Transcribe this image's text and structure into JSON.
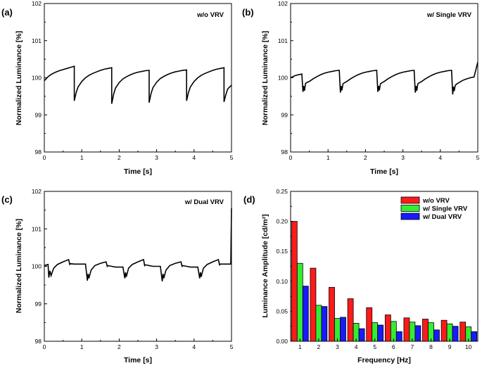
{
  "chart_data": [
    {
      "id": "a",
      "type": "line",
      "panel_label": "(a)",
      "annotation": "w/o VRV",
      "xlabel": "Time [s]",
      "ylabel": "Normalized Luminance [%]",
      "xlim": [
        0,
        5
      ],
      "ylim": [
        98,
        102
      ],
      "xticks": [
        "0",
        "1",
        "2",
        "3",
        "4",
        "5"
      ],
      "yticks": [
        "98",
        "99",
        "100",
        "101",
        "102"
      ],
      "series": [
        {
          "name": "w/o VRV",
          "x": [
            0,
            0.1,
            0.2,
            0.3,
            0.4,
            0.5,
            0.6,
            0.7,
            0.8,
            0.8,
            0.85,
            0.9,
            1.0,
            1.1,
            1.2,
            1.3,
            1.4,
            1.5,
            1.6,
            1.7,
            1.8,
            1.8,
            1.85,
            1.9,
            2.0,
            2.1,
            2.2,
            2.3,
            2.4,
            2.5,
            2.6,
            2.7,
            2.8,
            2.8,
            2.85,
            2.9,
            3.0,
            3.1,
            3.2,
            3.3,
            3.4,
            3.5,
            3.6,
            3.7,
            3.8,
            3.8,
            3.85,
            3.9,
            4.0,
            4.1,
            4.2,
            4.3,
            4.4,
            4.5,
            4.6,
            4.7,
            4.8,
            4.8,
            4.85,
            4.9,
            5.0
          ],
          "y": [
            99.92,
            100.03,
            100.1,
            100.15,
            100.19,
            100.22,
            100.25,
            100.28,
            100.31,
            99.38,
            99.6,
            99.75,
            99.9,
            100.0,
            100.07,
            100.12,
            100.16,
            100.2,
            100.23,
            100.25,
            100.27,
            99.3,
            99.55,
            99.72,
            99.87,
            99.97,
            100.03,
            100.08,
            100.12,
            100.15,
            100.17,
            100.19,
            100.2,
            99.33,
            99.57,
            99.73,
            99.88,
            99.98,
            100.04,
            100.09,
            100.13,
            100.16,
            100.18,
            100.2,
            100.21,
            99.38,
            99.6,
            99.75,
            99.9,
            100.0,
            100.07,
            100.12,
            100.16,
            100.2,
            100.23,
            100.25,
            100.27,
            99.35,
            99.55,
            99.7,
            99.8
          ]
        }
      ]
    },
    {
      "id": "b",
      "type": "line",
      "panel_label": "(b)",
      "annotation": "w/ Single VRV",
      "xlabel": "Time [s]",
      "ylabel": "Normalized Luminance [%]",
      "xlim": [
        0,
        5
      ],
      "ylim": [
        98,
        102
      ],
      "xticks": [
        "0",
        "1",
        "2",
        "3",
        "4",
        "5"
      ],
      "yticks": [
        "98",
        "99",
        "100",
        "101",
        "102"
      ],
      "series": [
        {
          "name": "w/ Single VRV",
          "x": [
            0,
            0.1,
            0.2,
            0.3,
            0.33,
            0.35,
            0.37,
            0.4,
            0.45,
            0.5,
            0.6,
            0.7,
            0.8,
            0.9,
            1.0,
            1.1,
            1.2,
            1.3,
            1.33,
            1.35,
            1.37,
            1.4,
            1.45,
            1.5,
            1.6,
            1.7,
            1.8,
            1.9,
            2.0,
            2.1,
            2.2,
            2.3,
            2.33,
            2.35,
            2.37,
            2.4,
            2.45,
            2.5,
            2.6,
            2.7,
            2.8,
            2.9,
            3.0,
            3.1,
            3.2,
            3.3,
            3.33,
            3.35,
            3.37,
            3.4,
            3.45,
            3.5,
            3.6,
            3.7,
            3.8,
            3.9,
            4.0,
            4.1,
            4.2,
            4.3,
            4.33,
            4.35,
            4.37,
            4.4,
            4.45,
            4.5,
            4.6,
            4.7,
            4.8,
            4.9,
            5.0
          ],
          "y": [
            100.0,
            100.05,
            100.08,
            100.1,
            99.62,
            99.78,
            99.65,
            99.85,
            99.88,
            99.9,
            99.97,
            100.03,
            100.08,
            100.12,
            100.15,
            100.17,
            100.19,
            100.2,
            99.6,
            99.78,
            99.66,
            99.84,
            99.87,
            99.9,
            99.97,
            100.03,
            100.08,
            100.12,
            100.15,
            100.17,
            100.19,
            100.2,
            99.62,
            99.78,
            99.66,
            99.84,
            99.87,
            99.9,
            99.97,
            100.03,
            100.08,
            100.12,
            100.15,
            100.17,
            100.19,
            100.2,
            99.6,
            99.78,
            99.65,
            99.84,
            99.87,
            99.9,
            99.97,
            100.03,
            100.08,
            100.12,
            100.15,
            100.17,
            100.19,
            100.2,
            99.55,
            99.76,
            99.64,
            99.8,
            99.84,
            99.87,
            99.93,
            99.97,
            100.0,
            100.02,
            100.42
          ]
        }
      ]
    },
    {
      "id": "c",
      "type": "line",
      "panel_label": "(c)",
      "annotation": "w/ Dual VRV",
      "xlabel": "Time [s]",
      "ylabel": "Normalized Luminance [%]",
      "xlim": [
        0,
        5
      ],
      "ylim": [
        98,
        102
      ],
      "xticks": [
        "0",
        "1",
        "2",
        "3",
        "4",
        "5"
      ],
      "yticks": [
        "98",
        "99",
        "100",
        "101",
        "102"
      ],
      "series": [
        {
          "name": "w/ Dual VRV",
          "x": [
            0,
            0.1,
            0.12,
            0.15,
            0.18,
            0.25,
            0.35,
            0.5,
            0.65,
            0.68,
            0.7,
            0.8,
            0.9,
            1.0,
            1.1,
            1.15,
            1.17,
            1.19,
            1.25,
            1.35,
            1.5,
            1.65,
            1.68,
            1.7,
            1.8,
            1.9,
            2.0,
            2.1,
            2.15,
            2.17,
            2.19,
            2.25,
            2.35,
            2.5,
            2.65,
            2.68,
            2.7,
            2.8,
            2.9,
            3.0,
            3.1,
            3.15,
            3.17,
            3.19,
            3.25,
            3.35,
            3.5,
            3.65,
            3.68,
            3.7,
            3.8,
            3.9,
            4.0,
            4.1,
            4.15,
            4.17,
            4.19,
            4.25,
            4.35,
            4.5,
            4.65,
            4.68,
            4.7,
            4.8,
            4.9,
            4.98,
            5.0
          ],
          "y": [
            100.02,
            100.05,
            99.7,
            99.88,
            99.75,
            99.95,
            100.05,
            100.12,
            100.18,
            100.05,
            100.07,
            100.06,
            100.06,
            100.06,
            100.06,
            99.62,
            99.8,
            99.68,
            99.9,
            100.02,
            100.08,
            100.12,
            100.0,
            100.02,
            100.0,
            99.98,
            99.98,
            99.98,
            99.68,
            99.84,
            99.72,
            99.95,
            100.05,
            100.12,
            100.18,
            100.02,
            100.04,
            100.02,
            100.0,
            100.0,
            100.0,
            99.6,
            99.8,
            99.68,
            99.9,
            100.02,
            100.08,
            100.12,
            100.0,
            100.02,
            100.0,
            99.98,
            99.98,
            99.98,
            99.68,
            99.84,
            99.72,
            99.95,
            100.05,
            100.12,
            100.18,
            100.04,
            100.06,
            100.06,
            100.06,
            100.06,
            101.55
          ]
        }
      ]
    },
    {
      "id": "d",
      "type": "bar",
      "panel_label": "(d)",
      "xlabel": "Frequency [Hz]",
      "ylabel": "Luminance Amplitude [cd/m²]",
      "ylim": [
        0,
        0.25
      ],
      "categories": [
        "1",
        "2",
        "3",
        "4",
        "5",
        "6",
        "7",
        "8",
        "9",
        "10"
      ],
      "yticks": [
        "0.00",
        "0.05",
        "0.10",
        "0.15",
        "0.20",
        "0.25"
      ],
      "legend_position": "top-right",
      "series": [
        {
          "name": "w/o VRV",
          "color": "#ff1a1a",
          "values": [
            0.2,
            0.122,
            0.09,
            0.071,
            0.056,
            0.044,
            0.039,
            0.037,
            0.035,
            0.032
          ]
        },
        {
          "name": "w/ Single VRV",
          "color": "#33ee33",
          "values": [
            0.13,
            0.06,
            0.038,
            0.03,
            0.031,
            0.033,
            0.032,
            0.031,
            0.029,
            0.024
          ]
        },
        {
          "name": "w/ Dual VRV",
          "color": "#1a1aff",
          "values": [
            0.092,
            0.058,
            0.04,
            0.021,
            0.027,
            0.016,
            0.026,
            0.019,
            0.025,
            0.016
          ]
        }
      ]
    }
  ]
}
